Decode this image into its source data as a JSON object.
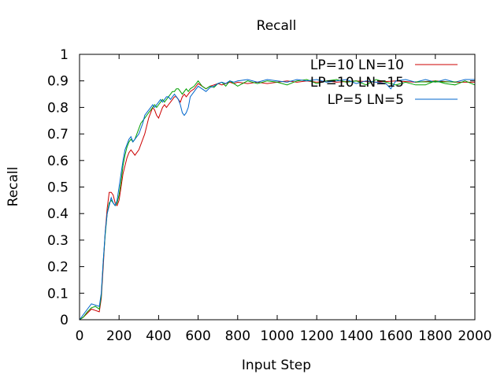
{
  "chart_data": {
    "type": "line",
    "title": "Recall",
    "xlabel": "Input Step",
    "ylabel": "Recall",
    "xlim": [
      0,
      2000
    ],
    "ylim": [
      0,
      1
    ],
    "xticks": [
      "0",
      "200",
      "400",
      "600",
      "800",
      "1000",
      "1200",
      "1400",
      "1600",
      "1800",
      "2000"
    ],
    "yticks": [
      "0",
      "0.1",
      "0.2",
      "0.3",
      "0.4",
      "0.5",
      "0.6",
      "0.7",
      "0.8",
      "0.9",
      "1"
    ],
    "grid": false,
    "legend_position": "top-right",
    "series": [
      {
        "name": "LP=10 LN=10",
        "color": "#cc0000",
        "points": [
          [
            0,
            0
          ],
          [
            20,
            0.01
          ],
          [
            40,
            0.025
          ],
          [
            60,
            0.04
          ],
          [
            80,
            0.035
          ],
          [
            100,
            0.03
          ],
          [
            110,
            0.08
          ],
          [
            120,
            0.2
          ],
          [
            130,
            0.33
          ],
          [
            140,
            0.42
          ],
          [
            150,
            0.48
          ],
          [
            160,
            0.48
          ],
          [
            170,
            0.47
          ],
          [
            180,
            0.44
          ],
          [
            190,
            0.43
          ],
          [
            200,
            0.45
          ],
          [
            210,
            0.5
          ],
          [
            220,
            0.55
          ],
          [
            230,
            0.58
          ],
          [
            240,
            0.61
          ],
          [
            250,
            0.63
          ],
          [
            260,
            0.64
          ],
          [
            270,
            0.63
          ],
          [
            280,
            0.62
          ],
          [
            290,
            0.63
          ],
          [
            300,
            0.64
          ],
          [
            310,
            0.66
          ],
          [
            320,
            0.68
          ],
          [
            330,
            0.7
          ],
          [
            340,
            0.73
          ],
          [
            350,
            0.76
          ],
          [
            360,
            0.78
          ],
          [
            370,
            0.8
          ],
          [
            380,
            0.79
          ],
          [
            390,
            0.77
          ],
          [
            400,
            0.76
          ],
          [
            410,
            0.78
          ],
          [
            420,
            0.8
          ],
          [
            430,
            0.81
          ],
          [
            440,
            0.8
          ],
          [
            450,
            0.81
          ],
          [
            460,
            0.82
          ],
          [
            470,
            0.83
          ],
          [
            480,
            0.84
          ],
          [
            490,
            0.84
          ],
          [
            500,
            0.83
          ],
          [
            510,
            0.82
          ],
          [
            520,
            0.84
          ],
          [
            530,
            0.85
          ],
          [
            540,
            0.84
          ],
          [
            550,
            0.85
          ],
          [
            560,
            0.86
          ],
          [
            580,
            0.87
          ],
          [
            600,
            0.89
          ],
          [
            620,
            0.88
          ],
          [
            640,
            0.87
          ],
          [
            660,
            0.88
          ],
          [
            680,
            0.885
          ],
          [
            700,
            0.89
          ],
          [
            720,
            0.885
          ],
          [
            740,
            0.89
          ],
          [
            760,
            0.895
          ],
          [
            780,
            0.89
          ],
          [
            800,
            0.895
          ],
          [
            850,
            0.89
          ],
          [
            900,
            0.895
          ],
          [
            950,
            0.89
          ],
          [
            1000,
            0.895
          ],
          [
            1050,
            0.9
          ],
          [
            1100,
            0.895
          ],
          [
            1150,
            0.9
          ],
          [
            1200,
            0.895
          ],
          [
            1250,
            0.9
          ],
          [
            1300,
            0.895
          ],
          [
            1400,
            0.9
          ],
          [
            1500,
            0.895
          ],
          [
            1600,
            0.9
          ],
          [
            1700,
            0.895
          ],
          [
            1800,
            0.9
          ],
          [
            1900,
            0.895
          ],
          [
            2000,
            0.895
          ]
        ]
      },
      {
        "name": "LP=10 LN=15",
        "color": "#00a000",
        "points": [
          [
            0,
            0
          ],
          [
            20,
            0.01
          ],
          [
            40,
            0.03
          ],
          [
            60,
            0.045
          ],
          [
            80,
            0.05
          ],
          [
            100,
            0.04
          ],
          [
            110,
            0.09
          ],
          [
            120,
            0.22
          ],
          [
            130,
            0.32
          ],
          [
            140,
            0.4
          ],
          [
            150,
            0.44
          ],
          [
            160,
            0.45
          ],
          [
            170,
            0.44
          ],
          [
            180,
            0.43
          ],
          [
            190,
            0.44
          ],
          [
            200,
            0.47
          ],
          [
            210,
            0.52
          ],
          [
            220,
            0.58
          ],
          [
            230,
            0.62
          ],
          [
            240,
            0.65
          ],
          [
            250,
            0.67
          ],
          [
            260,
            0.68
          ],
          [
            270,
            0.67
          ],
          [
            280,
            0.68
          ],
          [
            290,
            0.7
          ],
          [
            300,
            0.72
          ],
          [
            310,
            0.74
          ],
          [
            320,
            0.75
          ],
          [
            330,
            0.76
          ],
          [
            340,
            0.77
          ],
          [
            350,
            0.78
          ],
          [
            360,
            0.79
          ],
          [
            370,
            0.8
          ],
          [
            380,
            0.81
          ],
          [
            390,
            0.8
          ],
          [
            400,
            0.81
          ],
          [
            410,
            0.82
          ],
          [
            420,
            0.83
          ],
          [
            430,
            0.82
          ],
          [
            440,
            0.83
          ],
          [
            450,
            0.84
          ],
          [
            460,
            0.85
          ],
          [
            470,
            0.86
          ],
          [
            480,
            0.86
          ],
          [
            490,
            0.87
          ],
          [
            500,
            0.87
          ],
          [
            510,
            0.86
          ],
          [
            520,
            0.85
          ],
          [
            530,
            0.86
          ],
          [
            540,
            0.87
          ],
          [
            550,
            0.86
          ],
          [
            560,
            0.87
          ],
          [
            580,
            0.88
          ],
          [
            600,
            0.9
          ],
          [
            620,
            0.88
          ],
          [
            640,
            0.87
          ],
          [
            660,
            0.88
          ],
          [
            680,
            0.875
          ],
          [
            700,
            0.89
          ],
          [
            720,
            0.895
          ],
          [
            740,
            0.88
          ],
          [
            760,
            0.9
          ],
          [
            780,
            0.89
          ],
          [
            800,
            0.88
          ],
          [
            850,
            0.9
          ],
          [
            900,
            0.89
          ],
          [
            950,
            0.9
          ],
          [
            1000,
            0.895
          ],
          [
            1050,
            0.885
          ],
          [
            1100,
            0.9
          ],
          [
            1150,
            0.905
          ],
          [
            1200,
            0.89
          ],
          [
            1250,
            0.9
          ],
          [
            1300,
            0.905
          ],
          [
            1350,
            0.895
          ],
          [
            1400,
            0.9
          ],
          [
            1450,
            0.885
          ],
          [
            1500,
            0.905
          ],
          [
            1550,
            0.895
          ],
          [
            1600,
            0.885
          ],
          [
            1650,
            0.895
          ],
          [
            1700,
            0.885
          ],
          [
            1750,
            0.885
          ],
          [
            1800,
            0.9
          ],
          [
            1850,
            0.89
          ],
          [
            1900,
            0.885
          ],
          [
            1950,
            0.9
          ],
          [
            2000,
            0.885
          ]
        ]
      },
      {
        "name": "LP=5 LN=5",
        "color": "#0066cc",
        "points": [
          [
            0,
            0
          ],
          [
            20,
            0.02
          ],
          [
            40,
            0.04
          ],
          [
            60,
            0.06
          ],
          [
            80,
            0.055
          ],
          [
            100,
            0.05
          ],
          [
            110,
            0.1
          ],
          [
            120,
            0.22
          ],
          [
            130,
            0.33
          ],
          [
            140,
            0.4
          ],
          [
            150,
            0.43
          ],
          [
            160,
            0.46
          ],
          [
            170,
            0.44
          ],
          [
            180,
            0.43
          ],
          [
            190,
            0.45
          ],
          [
            200,
            0.5
          ],
          [
            210,
            0.55
          ],
          [
            220,
            0.6
          ],
          [
            230,
            0.64
          ],
          [
            240,
            0.66
          ],
          [
            250,
            0.68
          ],
          [
            260,
            0.69
          ],
          [
            270,
            0.67
          ],
          [
            280,
            0.68
          ],
          [
            290,
            0.69
          ],
          [
            300,
            0.7
          ],
          [
            310,
            0.72
          ],
          [
            320,
            0.74
          ],
          [
            330,
            0.77
          ],
          [
            340,
            0.78
          ],
          [
            350,
            0.79
          ],
          [
            360,
            0.8
          ],
          [
            370,
            0.81
          ],
          [
            380,
            0.8
          ],
          [
            390,
            0.81
          ],
          [
            400,
            0.82
          ],
          [
            410,
            0.83
          ],
          [
            420,
            0.82
          ],
          [
            430,
            0.83
          ],
          [
            440,
            0.84
          ],
          [
            450,
            0.84
          ],
          [
            460,
            0.83
          ],
          [
            470,
            0.84
          ],
          [
            480,
            0.85
          ],
          [
            490,
            0.84
          ],
          [
            500,
            0.83
          ],
          [
            510,
            0.81
          ],
          [
            520,
            0.78
          ],
          [
            530,
            0.77
          ],
          [
            540,
            0.78
          ],
          [
            550,
            0.8
          ],
          [
            560,
            0.84
          ],
          [
            580,
            0.86
          ],
          [
            600,
            0.88
          ],
          [
            620,
            0.87
          ],
          [
            640,
            0.86
          ],
          [
            660,
            0.875
          ],
          [
            680,
            0.88
          ],
          [
            700,
            0.89
          ],
          [
            720,
            0.895
          ],
          [
            740,
            0.89
          ],
          [
            760,
            0.9
          ],
          [
            780,
            0.895
          ],
          [
            800,
            0.9
          ],
          [
            850,
            0.905
          ],
          [
            900,
            0.895
          ],
          [
            950,
            0.905
          ],
          [
            1000,
            0.9
          ],
          [
            1050,
            0.895
          ],
          [
            1100,
            0.905
          ],
          [
            1150,
            0.9
          ],
          [
            1200,
            0.905
          ],
          [
            1250,
            0.895
          ],
          [
            1300,
            0.9
          ],
          [
            1350,
            0.905
          ],
          [
            1400,
            0.89
          ],
          [
            1450,
            0.9
          ],
          [
            1500,
            0.895
          ],
          [
            1550,
            0.89
          ],
          [
            1575,
            0.87
          ],
          [
            1600,
            0.9
          ],
          [
            1650,
            0.905
          ],
          [
            1700,
            0.895
          ],
          [
            1750,
            0.905
          ],
          [
            1800,
            0.895
          ],
          [
            1850,
            0.905
          ],
          [
            1900,
            0.895
          ],
          [
            1950,
            0.905
          ],
          [
            2000,
            0.905
          ]
        ]
      }
    ]
  }
}
